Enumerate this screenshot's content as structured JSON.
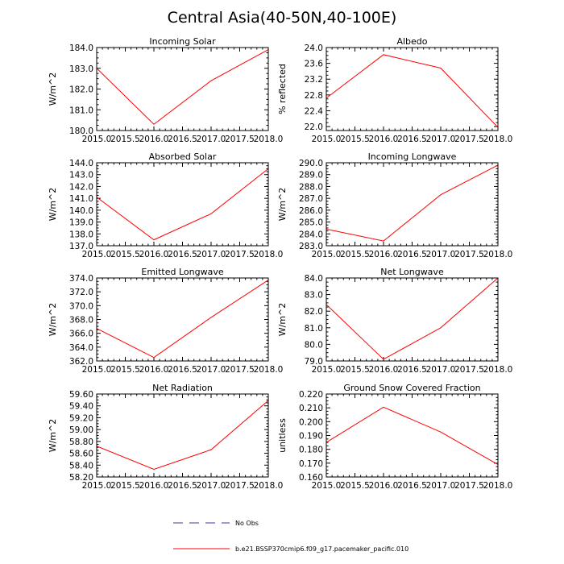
{
  "figure_title": "Central Asia(40-50N,40-100E)",
  "legend": {
    "items": [
      {
        "label": "No Obs",
        "color": "#3a3aa0",
        "style": "dashed"
      },
      {
        "label": "b.e21.BSSP370cmip6.f09_g17.pacemaker_pacific.010",
        "color": "#ff0000",
        "style": "solid"
      }
    ]
  },
  "chart_data": [
    {
      "type": "line",
      "title": "Incoming Solar",
      "xlabel": "",
      "ylabel": "W/m^2",
      "x": [
        2015,
        2016,
        2017,
        2018
      ],
      "series": [
        {
          "name": "b.e21.BSSP370cmip6.f09_g17.pacemaker_pacific.010",
          "values": [
            183.0,
            180.3,
            182.4,
            183.9
          ]
        }
      ],
      "xlim": [
        2015,
        2018
      ],
      "ylim": [
        180,
        184
      ],
      "xticks": [
        "2015.0",
        "2015.5",
        "2016.0",
        "2016.5",
        "2017.0",
        "2017.5",
        "2018.0"
      ],
      "yticks": [
        "180.0",
        "181.0",
        "182.0",
        "183.0",
        "184.0"
      ],
      "yticks_values": [
        180,
        181,
        182,
        183,
        184
      ]
    },
    {
      "type": "line",
      "title": "Albedo",
      "xlabel": "",
      "ylabel": "% reflected",
      "x": [
        2015,
        2016,
        2017,
        2018
      ],
      "series": [
        {
          "name": "b.e21.BSSP370cmip6.f09_g17.pacemaker_pacific.010",
          "values": [
            22.72,
            23.82,
            23.48,
            21.98
          ]
        }
      ],
      "xlim": [
        2015,
        2018
      ],
      "ylim": [
        21.9,
        24.0
      ],
      "xticks": [
        "2015.0",
        "2015.5",
        "2016.0",
        "2016.5",
        "2017.0",
        "2017.5",
        "2018.0"
      ],
      "yticks": [
        "22.0",
        "22.4",
        "22.8",
        "23.2",
        "23.6",
        "24.0"
      ],
      "yticks_values": [
        22.0,
        22.4,
        22.8,
        23.2,
        23.6,
        24.0
      ]
    },
    {
      "type": "line",
      "title": "Absorbed Solar",
      "xlabel": "",
      "ylabel": "W/m^2",
      "x": [
        2015,
        2016,
        2017,
        2018
      ],
      "series": [
        {
          "name": "b.e21.BSSP370cmip6.f09_g17.pacemaker_pacific.010",
          "values": [
            141.1,
            137.5,
            139.7,
            143.5
          ]
        }
      ],
      "xlim": [
        2015,
        2018
      ],
      "ylim": [
        137,
        144
      ],
      "xticks": [
        "2015.0",
        "2015.5",
        "2016.0",
        "2016.5",
        "2017.0",
        "2017.5",
        "2018.0"
      ],
      "yticks": [
        "137.0",
        "138.0",
        "139.0",
        "140.0",
        "141.0",
        "142.0",
        "143.0",
        "144.0"
      ],
      "yticks_values": [
        137,
        138,
        139,
        140,
        141,
        142,
        143,
        144
      ]
    },
    {
      "type": "line",
      "title": "Incoming Longwave",
      "xlabel": "",
      "ylabel": "W/m^2",
      "x": [
        2015,
        2016,
        2017,
        2018
      ],
      "series": [
        {
          "name": "b.e21.BSSP370cmip6.f09_g17.pacemaker_pacific.010",
          "values": [
            284.4,
            283.4,
            287.3,
            289.8
          ]
        }
      ],
      "xlim": [
        2015,
        2018
      ],
      "ylim": [
        283,
        290
      ],
      "xticks": [
        "2015.0",
        "2015.5",
        "2016.0",
        "2016.5",
        "2017.0",
        "2017.5",
        "2018.0"
      ],
      "yticks": [
        "283.0",
        "284.0",
        "285.0",
        "286.0",
        "287.0",
        "288.0",
        "289.0",
        "290.0"
      ],
      "yticks_values": [
        283,
        284,
        285,
        286,
        287,
        288,
        289,
        290
      ]
    },
    {
      "type": "line",
      "title": "Emitted Longwave",
      "xlabel": "",
      "ylabel": "W/m^2",
      "x": [
        2015,
        2016,
        2017,
        2018
      ],
      "series": [
        {
          "name": "b.e21.BSSP370cmip6.f09_g17.pacemaker_pacific.010",
          "values": [
            366.7,
            362.5,
            368.3,
            373.7
          ]
        }
      ],
      "xlim": [
        2015,
        2018
      ],
      "ylim": [
        362,
        374
      ],
      "xticks": [
        "2015.0",
        "2015.5",
        "2016.0",
        "2016.5",
        "2017.0",
        "2017.5",
        "2018.0"
      ],
      "yticks": [
        "362.0",
        "364.0",
        "366.0",
        "368.0",
        "370.0",
        "372.0",
        "374.0"
      ],
      "yticks_values": [
        362,
        364,
        366,
        368,
        370,
        372,
        374
      ]
    },
    {
      "type": "line",
      "title": "Net Longwave",
      "xlabel": "",
      "ylabel": "W/m^2",
      "x": [
        2015,
        2016,
        2017,
        2018
      ],
      "series": [
        {
          "name": "b.e21.BSSP370cmip6.f09_g17.pacemaker_pacific.010",
          "values": [
            82.4,
            79.1,
            81.0,
            84.0
          ]
        }
      ],
      "xlim": [
        2015,
        2018
      ],
      "ylim": [
        79,
        84
      ],
      "xticks": [
        "2015.0",
        "2015.5",
        "2016.0",
        "2016.5",
        "2017.0",
        "2017.5",
        "2018.0"
      ],
      "yticks": [
        "79.0",
        "80.0",
        "81.0",
        "82.0",
        "83.0",
        "84.0"
      ],
      "yticks_values": [
        79,
        80,
        81,
        82,
        83,
        84
      ]
    },
    {
      "type": "line",
      "title": "Net Radiation",
      "xlabel": "",
      "ylabel": "W/m^2",
      "x": [
        2015,
        2016,
        2017,
        2018
      ],
      "series": [
        {
          "name": "b.e21.BSSP370cmip6.f09_g17.pacemaker_pacific.010",
          "values": [
            58.72,
            58.33,
            58.66,
            59.49
          ]
        }
      ],
      "xlim": [
        2015,
        2018
      ],
      "ylim": [
        58.2,
        59.6
      ],
      "xticks": [
        "2015.0",
        "2015.5",
        "2016.0",
        "2016.5",
        "2017.0",
        "2017.5",
        "2018.0"
      ],
      "yticks": [
        "58.20",
        "58.40",
        "58.60",
        "58.80",
        "59.00",
        "59.20",
        "59.40",
        "59.60"
      ],
      "yticks_values": [
        58.2,
        58.4,
        58.6,
        58.8,
        59.0,
        59.2,
        59.4,
        59.6
      ]
    },
    {
      "type": "line",
      "title": "Ground Snow Covered Fraction",
      "xlabel": "",
      "ylabel": "unitless",
      "x": [
        2015,
        2016,
        2017,
        2018
      ],
      "series": [
        {
          "name": "b.e21.BSSP370cmip6.f09_g17.pacemaker_pacific.010",
          "values": [
            0.185,
            0.2105,
            0.1925,
            0.169
          ]
        }
      ],
      "xlim": [
        2015,
        2018
      ],
      "ylim": [
        0.16,
        0.22
      ],
      "xticks": [
        "2015.0",
        "2015.5",
        "2016.0",
        "2016.5",
        "2017.0",
        "2017.5",
        "2018.0"
      ],
      "yticks": [
        "0.160",
        "0.170",
        "0.180",
        "0.190",
        "0.200",
        "0.210",
        "0.220"
      ],
      "yticks_values": [
        0.16,
        0.17,
        0.18,
        0.19,
        0.2,
        0.21,
        0.22
      ]
    }
  ]
}
